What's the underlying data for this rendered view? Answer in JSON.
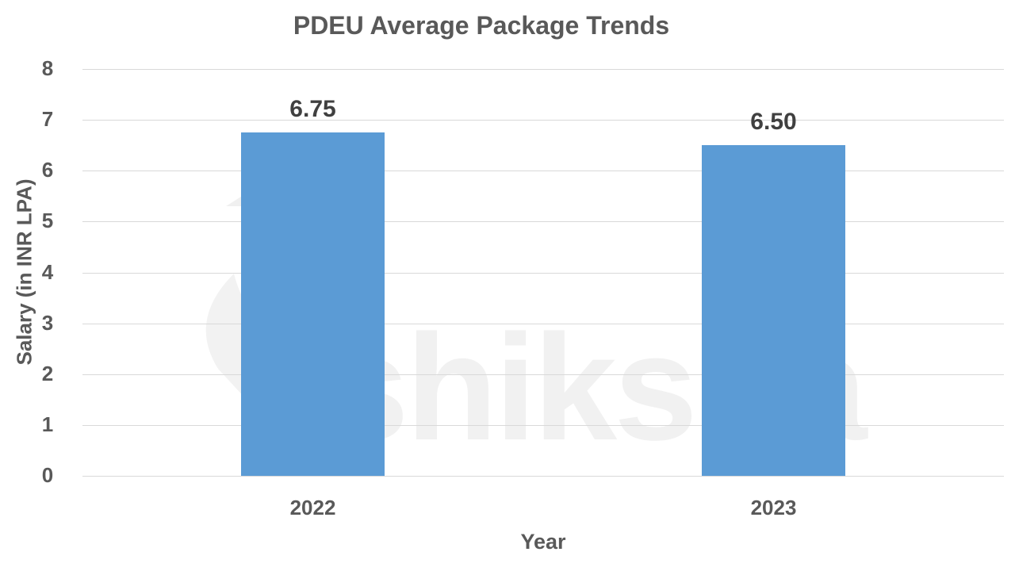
{
  "chart_data": {
    "type": "bar",
    "title": "PDEU Average Package Trends",
    "categories": [
      "2022",
      "2023"
    ],
    "values": [
      6.75,
      6.5
    ],
    "data_labels": [
      "6.75",
      "6.50"
    ],
    "xlabel": "Year",
    "ylabel": "Salary (in INR LPA)",
    "ylim": [
      0,
      8
    ],
    "yticks": [
      "0",
      "1",
      "2",
      "3",
      "4",
      "5",
      "6",
      "7",
      "8"
    ],
    "grid": true,
    "legend": "none",
    "bar_color": "#5b9bd5"
  },
  "watermark": {
    "text": "shiksha"
  }
}
